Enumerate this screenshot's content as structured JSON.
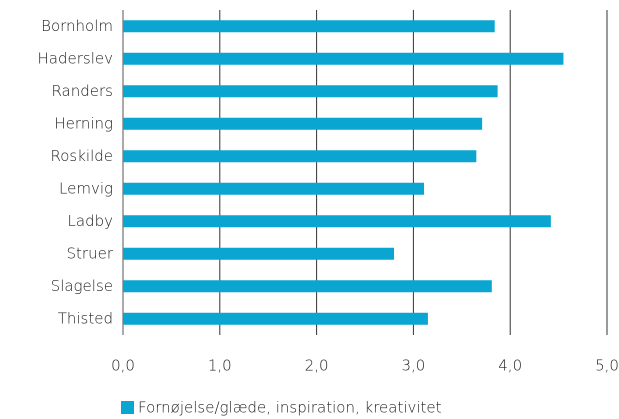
{
  "chart_data": {
    "type": "barh",
    "categories": [
      "Bornholm",
      "Haderslev",
      "Randers",
      "Herning",
      "Roskilde",
      "Lemvig",
      "Ladby",
      "Struer",
      "Slagelse",
      "Thisted"
    ],
    "series": [
      {
        "name": "Fornøjelse/glæde, inspiration, kreativitet",
        "color": "#0aa5d0",
        "values": [
          3.84,
          4.55,
          3.87,
          3.71,
          3.65,
          3.11,
          4.42,
          2.8,
          3.81,
          3.15
        ]
      }
    ],
    "xlim": [
      0,
      5
    ],
    "xticks": [
      {
        "value": 0,
        "label": "0,0"
      },
      {
        "value": 1,
        "label": "1,0"
      },
      {
        "value": 2,
        "label": "2,0"
      },
      {
        "value": 3,
        "label": "3,0"
      },
      {
        "value": 4,
        "label": "4,0"
      },
      {
        "value": 5,
        "label": "5,0"
      }
    ],
    "grid": true,
    "legend": "bottom"
  }
}
